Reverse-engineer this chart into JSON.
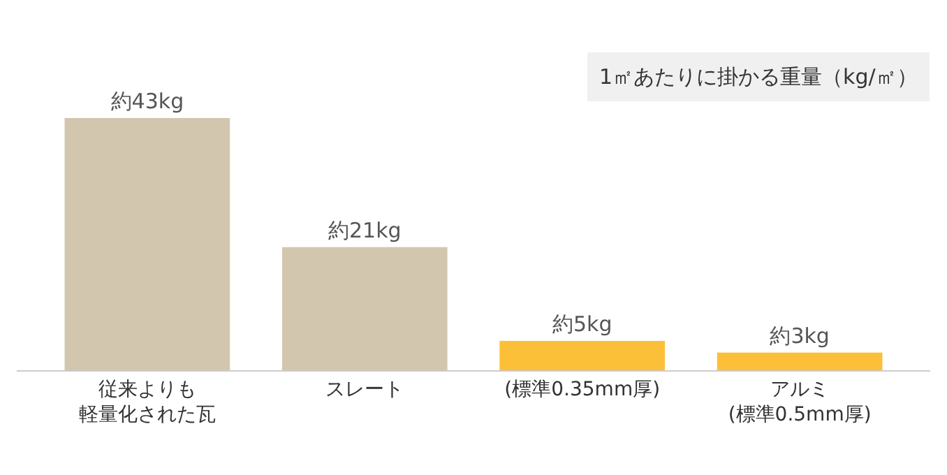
{
  "chart_data": {
    "type": "bar",
    "title": "1㎡あたりに掛かる重量（kg/㎡）",
    "categories": [
      "従来よりも軽量化された瓦",
      "スレート",
      "(標準0.35mm厚)",
      "アルミ\n(標準0.5mm厚)"
    ],
    "values": [
      43,
      21,
      5,
      3
    ],
    "colors": [
      "#d3c6ae",
      "#d3c6ae",
      "#fcbf38",
      "#fcbf38"
    ],
    "value_labels": [
      "約43kg",
      "約21kg",
      "約5kg",
      "約3kg"
    ],
    "grid": false,
    "legend": false
  }
}
